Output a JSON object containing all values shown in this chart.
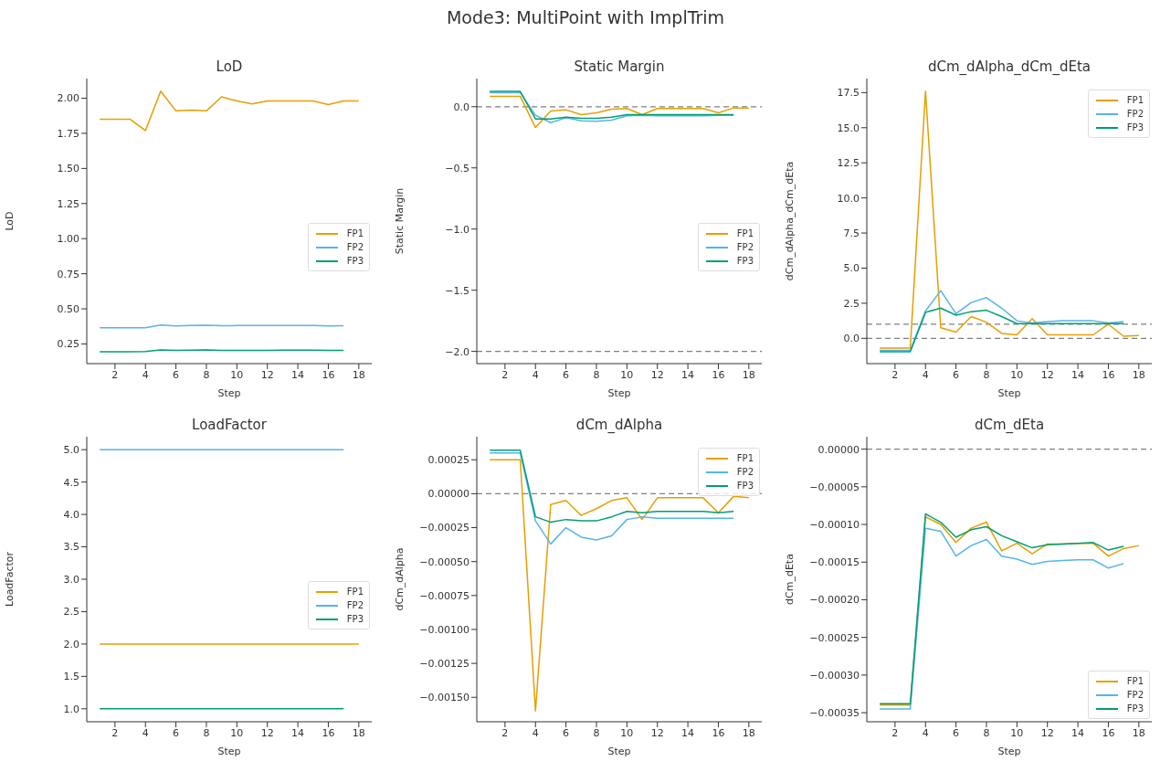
{
  "chart_data": [
    {
      "type": "line",
      "title": "LoD",
      "xlabel": "Step",
      "ylabel": "LoD",
      "annotations": [
        "Mode3: MultiPoint with ImplTrim"
      ],
      "x": [
        1,
        2,
        3,
        4,
        5,
        6,
        7,
        8,
        9,
        10,
        11,
        12,
        13,
        14,
        15,
        16,
        17,
        18
      ],
      "xlim": [
        0.15,
        18.85
      ],
      "xticks": [
        2,
        4,
        6,
        8,
        10,
        12,
        14,
        16,
        18
      ],
      "ylim": [
        0.11,
        2.14
      ],
      "yticks": [
        {
          "value": 0.25,
          "label": "0.25"
        },
        {
          "value": 0.5,
          "label": "0.50"
        },
        {
          "value": 0.75,
          "label": "0.75"
        },
        {
          "value": 1,
          "label": "1.00"
        },
        {
          "value": 1.25,
          "label": "1.25"
        },
        {
          "value": 1.5,
          "label": "1.50"
        },
        {
          "value": 1.75,
          "label": "1.75"
        },
        {
          "value": 2,
          "label": "2.00"
        }
      ],
      "legend": "center right",
      "marker": "none",
      "line_style": "solid",
      "series": [
        {
          "name": "FP1",
          "color": "#e69f00",
          "values": [
            1.85,
            1.85,
            1.85,
            1.77,
            2.05,
            1.91,
            1.915,
            1.91,
            2.01,
            1.98,
            1.96,
            1.98,
            1.98,
            1.98,
            1.98,
            1.955,
            1.98,
            1.98
          ]
        },
        {
          "name": "FP2",
          "color": "#56b4e9",
          "values": [
            0.365,
            0.365,
            0.365,
            0.365,
            0.385,
            0.378,
            0.382,
            0.383,
            0.38,
            0.381,
            0.381,
            0.381,
            0.381,
            0.381,
            0.381,
            0.379,
            0.38,
            null
          ]
        },
        {
          "name": "FP3",
          "color": "#009e73",
          "values": [
            0.195,
            0.195,
            0.195,
            0.196,
            0.208,
            0.204,
            0.206,
            0.207,
            0.205,
            0.205,
            0.205,
            0.205,
            0.206,
            0.206,
            0.206,
            0.204,
            0.205,
            null
          ]
        }
      ]
    },
    {
      "type": "line",
      "title": "Static Margin",
      "xlabel": "Step",
      "ylabel": "Static Margin",
      "x": [
        1,
        2,
        3,
        4,
        5,
        6,
        7,
        8,
        9,
        10,
        11,
        12,
        13,
        14,
        15,
        16,
        17,
        18
      ],
      "xlim": [
        0.15,
        18.85
      ],
      "xticks": [
        2,
        4,
        6,
        8,
        10,
        12,
        14,
        16,
        18
      ],
      "ylim": [
        -2.1,
        0.23
      ],
      "yticks": [
        {
          "value": -2,
          "label": "−2.0"
        },
        {
          "value": -1.5,
          "label": "−1.5"
        },
        {
          "value": -1,
          "label": "−1.0"
        },
        {
          "value": -0.5,
          "label": "−0.5"
        },
        {
          "value": 0,
          "label": "0.0"
        }
      ],
      "legend": "center right",
      "marker": "none",
      "line_style": "solid",
      "ref_lines": [
        {
          "axis": "y",
          "value": 0,
          "color": "#808080",
          "line_style": "dashed"
        },
        {
          "axis": "y",
          "value": -2,
          "color": "#808080",
          "line_style": "dashed"
        }
      ],
      "series": [
        {
          "name": "FP1",
          "color": "#e69f00",
          "values": [
            0.085,
            0.085,
            0.085,
            -0.17,
            -0.035,
            -0.025,
            -0.065,
            -0.05,
            -0.02,
            -0.015,
            -0.065,
            -0.015,
            -0.015,
            -0.015,
            -0.015,
            -0.05,
            -0.01,
            -0.01
          ]
        },
        {
          "name": "FP2",
          "color": "#56b4e9",
          "values": [
            0.115,
            0.115,
            0.115,
            -0.07,
            -0.13,
            -0.09,
            -0.115,
            -0.12,
            -0.11,
            -0.075,
            -0.07,
            -0.075,
            -0.075,
            -0.075,
            -0.075,
            -0.07,
            -0.07,
            null
          ]
        },
        {
          "name": "FP3",
          "color": "#009e73",
          "values": [
            0.125,
            0.125,
            0.125,
            -0.1,
            -0.1,
            -0.085,
            -0.095,
            -0.095,
            -0.085,
            -0.065,
            -0.065,
            -0.065,
            -0.065,
            -0.065,
            -0.065,
            -0.065,
            -0.065,
            null
          ]
        }
      ]
    },
    {
      "type": "line",
      "title": "dCm_dAlpha_dCm_dEta",
      "xlabel": "Step",
      "ylabel": "dCm_dAlpha_dCm_dEta",
      "x": [
        1,
        2,
        3,
        4,
        5,
        6,
        7,
        8,
        9,
        10,
        11,
        12,
        13,
        14,
        15,
        16,
        17,
        18
      ],
      "xlim": [
        0.15,
        18.85
      ],
      "xticks": [
        2,
        4,
        6,
        8,
        10,
        12,
        14,
        16,
        18
      ],
      "ylim": [
        -1.8,
        18.5
      ],
      "yticks": [
        {
          "value": 0,
          "label": "0.0"
        },
        {
          "value": 2.5,
          "label": "2.5"
        },
        {
          "value": 5,
          "label": "5.0"
        },
        {
          "value": 7.5,
          "label": "7.5"
        },
        {
          "value": 10,
          "label": "10.0"
        },
        {
          "value": 12.5,
          "label": "12.5"
        },
        {
          "value": 15,
          "label": "15.0"
        },
        {
          "value": 17.5,
          "label": "17.5"
        }
      ],
      "legend": "top right",
      "marker": "none",
      "line_style": "solid",
      "ref_lines": [
        {
          "axis": "y",
          "value": 0,
          "color": "#808080",
          "line_style": "dashed"
        },
        {
          "axis": "y",
          "value": 1,
          "color": "#808080",
          "line_style": "dashed"
        }
      ],
      "series": [
        {
          "name": "FP1",
          "color": "#e69f00",
          "values": [
            -0.7,
            -0.7,
            -0.7,
            17.6,
            0.75,
            0.45,
            1.55,
            1.15,
            0.35,
            0.25,
            1.4,
            0.25,
            0.25,
            0.25,
            0.25,
            1.0,
            0.15,
            0.2
          ]
        },
        {
          "name": "FP2",
          "color": "#56b4e9",
          "values": [
            -0.85,
            -0.85,
            -0.85,
            1.95,
            3.4,
            1.75,
            2.55,
            2.9,
            2.15,
            1.25,
            1.1,
            1.2,
            1.25,
            1.25,
            1.25,
            1.1,
            1.2,
            null
          ]
        },
        {
          "name": "FP3",
          "color": "#009e73",
          "values": [
            -0.95,
            -0.95,
            -0.95,
            1.85,
            2.15,
            1.65,
            1.9,
            2.0,
            1.55,
            1.05,
            1.05,
            1.05,
            1.05,
            1.05,
            1.05,
            1.05,
            1.05,
            null
          ]
        }
      ]
    },
    {
      "type": "line",
      "title": "LoadFactor",
      "xlabel": "Step",
      "ylabel": "LoadFactor",
      "x": [
        1,
        2,
        3,
        4,
        5,
        6,
        7,
        8,
        9,
        10,
        11,
        12,
        13,
        14,
        15,
        16,
        17,
        18
      ],
      "xlim": [
        0.15,
        18.85
      ],
      "xticks": [
        2,
        4,
        6,
        8,
        10,
        12,
        14,
        16,
        18
      ],
      "ylim": [
        0.8,
        5.2
      ],
      "yticks": [
        {
          "value": 1,
          "label": "1.0"
        },
        {
          "value": 1.5,
          "label": "1.5"
        },
        {
          "value": 2,
          "label": "2.0"
        },
        {
          "value": 2.5,
          "label": "2.5"
        },
        {
          "value": 3,
          "label": "3.0"
        },
        {
          "value": 3.5,
          "label": "3.5"
        },
        {
          "value": 4,
          "label": "4.0"
        },
        {
          "value": 4.5,
          "label": "4.5"
        },
        {
          "value": 5,
          "label": "5.0"
        }
      ],
      "legend": "center right",
      "marker": "none",
      "line_style": "solid",
      "series": [
        {
          "name": "FP1",
          "color": "#e69f00",
          "values": [
            2,
            2,
            2,
            2,
            2,
            2,
            2,
            2,
            2,
            2,
            2,
            2,
            2,
            2,
            2,
            2,
            2,
            2
          ]
        },
        {
          "name": "FP2",
          "color": "#56b4e9",
          "values": [
            5,
            5,
            5,
            5,
            5,
            5,
            5,
            5,
            5,
            5,
            5,
            5,
            5,
            5,
            5,
            5,
            5,
            null
          ]
        },
        {
          "name": "FP3",
          "color": "#009e73",
          "values": [
            1,
            1,
            1,
            1,
            1,
            1,
            1,
            1,
            1,
            1,
            1,
            1,
            1,
            1,
            1,
            1,
            1,
            null
          ]
        }
      ]
    },
    {
      "type": "line",
      "title": "dCm_dAlpha",
      "xlabel": "Step",
      "ylabel": "dCm_dAlpha",
      "x": [
        1,
        2,
        3,
        4,
        5,
        6,
        7,
        8,
        9,
        10,
        11,
        12,
        13,
        14,
        15,
        16,
        17,
        18
      ],
      "xlim": [
        0.15,
        18.85
      ],
      "xticks": [
        2,
        4,
        6,
        8,
        10,
        12,
        14,
        16,
        18
      ],
      "ylim": [
        -0.00168,
        0.00042
      ],
      "yticks": [
        {
          "value": -0.0015,
          "label": "−0.00150"
        },
        {
          "value": -0.00125,
          "label": "−0.00125"
        },
        {
          "value": -0.001,
          "label": "−0.00100"
        },
        {
          "value": -0.00075,
          "label": "−0.00075"
        },
        {
          "value": -0.0005,
          "label": "−0.00050"
        },
        {
          "value": -0.00025,
          "label": "−0.00025"
        },
        {
          "value": 0,
          "label": "0.00000"
        },
        {
          "value": 0.00025,
          "label": "0.00025"
        }
      ],
      "legend": "top right",
      "marker": "none",
      "line_style": "solid",
      "ref_lines": [
        {
          "axis": "y",
          "value": 0,
          "color": "#808080",
          "line_style": "dashed"
        }
      ],
      "series": [
        {
          "name": "FP1",
          "color": "#e69f00",
          "values": [
            0.00025,
            0.00025,
            0.00025,
            -0.0016,
            -8e-05,
            -5e-05,
            -0.00016,
            -0.00011,
            -5e-05,
            -3e-05,
            -0.00019,
            -3e-05,
            -3e-05,
            -3e-05,
            -3e-05,
            -0.00014,
            -2e-05,
            -3e-05
          ]
        },
        {
          "name": "FP2",
          "color": "#56b4e9",
          "values": [
            0.0003,
            0.0003,
            0.0003,
            -0.0002,
            -0.00037,
            -0.00025,
            -0.00032,
            -0.00034,
            -0.00031,
            -0.00019,
            -0.00017,
            -0.00018,
            -0.00018,
            -0.00018,
            -0.00018,
            -0.00018,
            -0.00018,
            null
          ]
        },
        {
          "name": "FP3",
          "color": "#009e73",
          "values": [
            0.00032,
            0.00032,
            0.00032,
            -0.00017,
            -0.00021,
            -0.00019,
            -0.0002,
            -0.0002,
            -0.00017,
            -0.00013,
            -0.00014,
            -0.00013,
            -0.00013,
            -0.00013,
            -0.00013,
            -0.00014,
            -0.00013,
            null
          ]
        }
      ]
    },
    {
      "type": "line",
      "title": "dCm_dEta",
      "xlabel": "Step",
      "ylabel": "dCm_dEta",
      "x": [
        1,
        2,
        3,
        4,
        5,
        6,
        7,
        8,
        9,
        10,
        11,
        12,
        13,
        14,
        15,
        16,
        17,
        18
      ],
      "xlim": [
        0.15,
        18.85
      ],
      "xticks": [
        2,
        4,
        6,
        8,
        10,
        12,
        14,
        16,
        18
      ],
      "ylim": [
        -0.000362,
        1.65e-05
      ],
      "yticks": [
        {
          "value": -0.00035,
          "label": "−0.00035"
        },
        {
          "value": -0.0003,
          "label": "−0.00030"
        },
        {
          "value": -0.00025,
          "label": "−0.00025"
        },
        {
          "value": -0.0002,
          "label": "−0.00020"
        },
        {
          "value": -0.00015,
          "label": "−0.00015"
        },
        {
          "value": -0.0001,
          "label": "−0.00010"
        },
        {
          "value": -5e-05,
          "label": "−0.00005"
        },
        {
          "value": 0,
          "label": "0.00000"
        }
      ],
      "legend": "bottom right",
      "marker": "none",
      "line_style": "solid",
      "ref_lines": [
        {
          "axis": "y",
          "value": 0,
          "color": "#808080",
          "line_style": "dashed"
        }
      ],
      "series": [
        {
          "name": "FP1",
          "color": "#e69f00",
          "values": [
            -0.00034,
            -0.00034,
            -0.00034,
            -9e-05,
            -0.0001,
            -0.000124,
            -0.000105,
            -9.7e-05,
            -0.000135,
            -0.000125,
            -0.000139,
            -0.000126,
            -0.000126,
            -0.000125,
            -0.000125,
            -0.000142,
            -0.000132,
            -0.000128
          ]
        },
        {
          "name": "FP2",
          "color": "#56b4e9",
          "values": [
            -0.000345,
            -0.000345,
            -0.000345,
            -0.000105,
            -0.000109,
            -0.000142,
            -0.000128,
            -0.00012,
            -0.000142,
            -0.000146,
            -0.000153,
            -0.000149,
            -0.000148,
            -0.000147,
            -0.000147,
            -0.000158,
            -0.000152,
            null
          ]
        },
        {
          "name": "FP3",
          "color": "#009e73",
          "values": [
            -0.000338,
            -0.000338,
            -0.000338,
            -8.6e-05,
            -9.7e-05,
            -0.000117,
            -0.000107,
            -0.000103,
            -0.000115,
            -0.000123,
            -0.000131,
            -0.000127,
            -0.000126,
            -0.000125,
            -0.000124,
            -0.000134,
            -0.000129,
            null
          ]
        }
      ]
    }
  ]
}
